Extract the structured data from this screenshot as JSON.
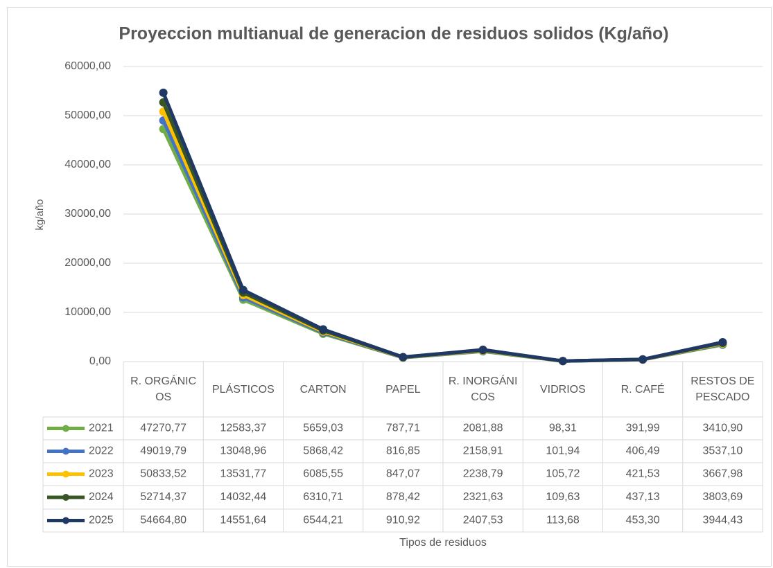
{
  "chart_data": {
    "type": "line",
    "title": "Proyeccion multianual de generacion de residuos solidos (Kg/año)",
    "x_label": "Tipos de residuos",
    "y_label": "kg/año",
    "categories": [
      "R. ORGÁNICOS",
      "PLÁSTICOS",
      "CARTON",
      "PAPEL",
      "R. INORGÁNICOS",
      "VIDRIOS",
      "R. CAFÉ",
      "RESTOS DE PESCADO"
    ],
    "ylim": [
      0,
      60000
    ],
    "yticks": [
      {
        "value": 0,
        "label": "0,00"
      },
      {
        "value": 10000,
        "label": "10000,00"
      },
      {
        "value": 20000,
        "label": "20000,00"
      },
      {
        "value": 30000,
        "label": "30000,00"
      },
      {
        "value": 40000,
        "label": "40000,00"
      },
      {
        "value": 50000,
        "label": "50000,00"
      },
      {
        "value": 60000,
        "label": "60000,00"
      }
    ],
    "grid": true,
    "series": [
      {
        "name": "2021",
        "color": "#70ad47",
        "values": [
          47270.77,
          12583.37,
          5659.03,
          787.71,
          2081.88,
          98.31,
          391.99,
          3410.9
        ],
        "value_labels": [
          "47270,77",
          "12583,37",
          "5659,03",
          "787,71",
          "2081,88",
          "98,31",
          "391,99",
          "3410,90"
        ]
      },
      {
        "name": "2022",
        "color": "#4472c4",
        "values": [
          49019.79,
          13048.96,
          5868.42,
          816.85,
          2158.91,
          101.94,
          406.49,
          3537.1
        ],
        "value_labels": [
          "49019,79",
          "13048,96",
          "5868,42",
          "816,85",
          "2158,91",
          "101,94",
          "406,49",
          "3537,10"
        ]
      },
      {
        "name": "2023",
        "color": "#ffc000",
        "values": [
          50833.52,
          13531.77,
          6085.55,
          847.07,
          2238.79,
          105.72,
          421.53,
          3667.98
        ],
        "value_labels": [
          "50833,52",
          "13531,77",
          "6085,55",
          "847,07",
          "2238,79",
          "105,72",
          "421,53",
          "3667,98"
        ]
      },
      {
        "name": "2024",
        "color": "#375623",
        "values": [
          52714.37,
          14032.44,
          6310.71,
          878.42,
          2321.63,
          109.63,
          437.13,
          3803.69
        ],
        "value_labels": [
          "52714,37",
          "14032,44",
          "6310,71",
          "878,42",
          "2321,63",
          "109,63",
          "437,13",
          "3803,69"
        ]
      },
      {
        "name": "2025",
        "color": "#203864",
        "values": [
          54664.8,
          14551.64,
          6544.21,
          910.92,
          2407.53,
          113.68,
          453.3,
          3944.43
        ],
        "value_labels": [
          "54664,80",
          "14551,64",
          "6544,21",
          "910,92",
          "2407,53",
          "113,68",
          "453,30",
          "3944,43"
        ]
      }
    ]
  }
}
